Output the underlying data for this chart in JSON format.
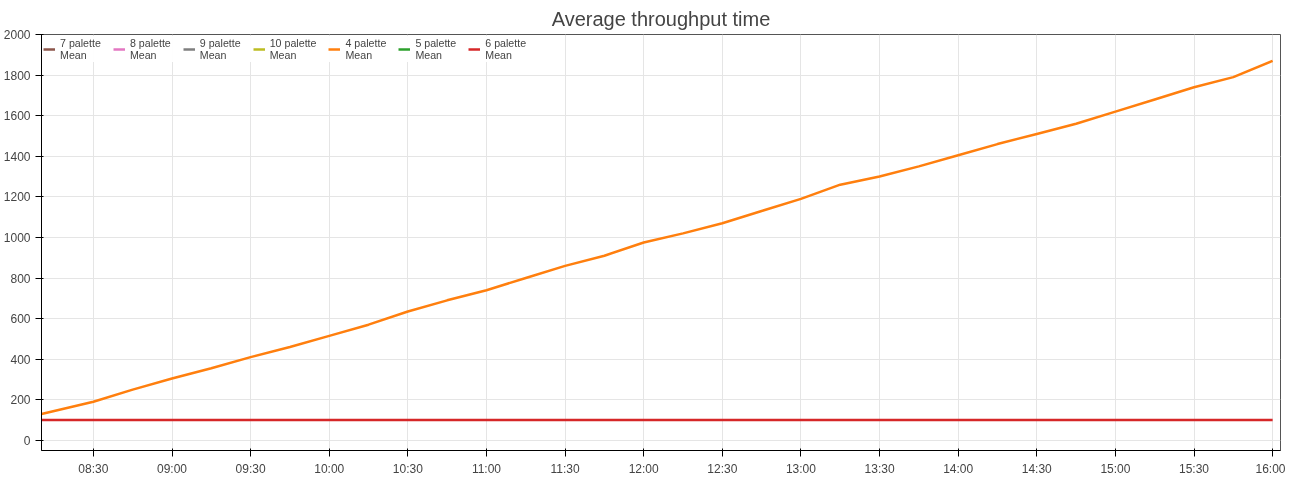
{
  "chart_data": {
    "type": "line",
    "title": "Average throughput time",
    "x": [
      8.17,
      8.5,
      8.75,
      9.0,
      9.25,
      9.5,
      9.75,
      10.0,
      10.25,
      10.5,
      10.75,
      11.0,
      11.25,
      11.5,
      11.75,
      12.0,
      12.25,
      12.5,
      12.75,
      13.0,
      13.25,
      13.5,
      13.75,
      14.0,
      14.25,
      14.5,
      14.75,
      15.0,
      15.25,
      15.5,
      15.75,
      16.0
    ],
    "series": [
      {
        "name": "7 palette\nMean",
        "color": "#8c564b",
        "values": [
          null,
          null,
          null,
          null,
          null,
          null,
          null,
          null,
          null,
          null,
          null,
          null,
          null,
          null,
          null,
          null,
          null,
          null,
          null,
          null,
          null,
          null,
          null,
          null,
          null,
          null,
          null,
          null,
          null,
          null,
          null,
          null
        ]
      },
      {
        "name": "8 palette\nMean",
        "color": "#e377c2",
        "values": [
          null,
          null,
          null,
          null,
          null,
          null,
          null,
          null,
          null,
          null,
          null,
          null,
          null,
          null,
          null,
          null,
          null,
          null,
          null,
          null,
          null,
          null,
          null,
          null,
          null,
          null,
          null,
          null,
          null,
          null,
          null,
          null
        ]
      },
      {
        "name": "9 palette\nMean",
        "color": "#7f7f7f",
        "values": [
          null,
          null,
          null,
          null,
          null,
          null,
          null,
          null,
          null,
          null,
          null,
          null,
          null,
          null,
          null,
          null,
          null,
          null,
          null,
          null,
          null,
          null,
          null,
          null,
          null,
          null,
          null,
          null,
          null,
          null,
          null,
          null
        ]
      },
      {
        "name": "10 palette\nMean",
        "color": "#bcbd22",
        "values": [
          null,
          null,
          null,
          null,
          null,
          null,
          null,
          null,
          null,
          null,
          null,
          null,
          null,
          null,
          null,
          null,
          null,
          null,
          null,
          null,
          null,
          null,
          null,
          null,
          null,
          null,
          null,
          null,
          null,
          null,
          null,
          null
        ]
      },
      {
        "name": "4 palette\nMean",
        "color": "#ff7f0e",
        "values": [
          130,
          190,
          250,
          305,
          355,
          410,
          460,
          515,
          570,
          635,
          690,
          740,
          800,
          860,
          910,
          975,
          1020,
          1070,
          1130,
          1190,
          1260,
          1300,
          1350,
          1405,
          1460,
          1510,
          1560,
          1620,
          1680,
          1740,
          1790,
          1870
        ]
      },
      {
        "name": "5 palette\nMean",
        "color": "#2ca02c",
        "values": [
          null,
          null,
          null,
          null,
          null,
          null,
          null,
          null,
          null,
          null,
          null,
          null,
          null,
          null,
          null,
          null,
          null,
          null,
          null,
          null,
          null,
          null,
          null,
          null,
          null,
          null,
          null,
          null,
          null,
          null,
          null,
          null
        ]
      },
      {
        "name": "6 palette\nMean",
        "color": "#d62728",
        "values": [
          100,
          100,
          100,
          100,
          100,
          100,
          100,
          100,
          100,
          100,
          100,
          100,
          100,
          100,
          100,
          100,
          100,
          100,
          100,
          100,
          100,
          100,
          100,
          100,
          100,
          100,
          100,
          100,
          100,
          100,
          100,
          100
        ]
      }
    ],
    "xlim": [
      8.17,
      16.05
    ],
    "ylim": [
      -50,
      2000
    ],
    "xticks": [
      {
        "value": 8.5,
        "label": "08:30"
      },
      {
        "value": 9.0,
        "label": "09:00"
      },
      {
        "value": 9.5,
        "label": "09:30"
      },
      {
        "value": 10.0,
        "label": "10:00"
      },
      {
        "value": 10.5,
        "label": "10:30"
      },
      {
        "value": 11.0,
        "label": "11:00"
      },
      {
        "value": 11.5,
        "label": "11:30"
      },
      {
        "value": 12.0,
        "label": "12:00"
      },
      {
        "value": 12.5,
        "label": "12:30"
      },
      {
        "value": 13.0,
        "label": "13:00"
      },
      {
        "value": 13.5,
        "label": "13:30"
      },
      {
        "value": 14.0,
        "label": "14:00"
      },
      {
        "value": 14.5,
        "label": "14:30"
      },
      {
        "value": 15.0,
        "label": "15:00"
      },
      {
        "value": 15.5,
        "label": "15:30"
      },
      {
        "value": 16.0,
        "label": "16:00"
      }
    ],
    "yticks": [
      0,
      200,
      400,
      600,
      800,
      1000,
      1200,
      1400,
      1600,
      1800,
      2000
    ],
    "grid": true,
    "legend": "top left",
    "marker": "none",
    "line_style": "solid"
  }
}
